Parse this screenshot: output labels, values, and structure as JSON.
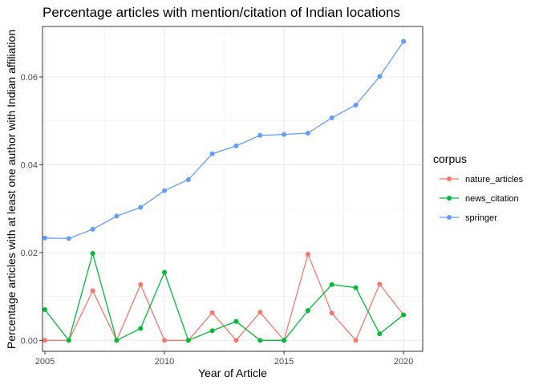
{
  "chart_data": {
    "type": "line",
    "title": "Percentage articles with mention/citation of Indian locations",
    "xlabel": "Year of Article",
    "ylabel": "Percentage articles with at least one author with Indian affiliation",
    "xlim": [
      2004.9,
      2020.8
    ],
    "ylim": [
      -0.0025,
      0.0715
    ],
    "x_ticks": [
      2005,
      2010,
      2015,
      2020
    ],
    "x_tick_labels": [
      "2005",
      "2010",
      "2015",
      "2020"
    ],
    "y_ticks": [
      0.0,
      0.02,
      0.04,
      0.06
    ],
    "y_tick_labels": [
      "0.00",
      "0.02",
      "0.04",
      "0.06"
    ],
    "grid": true,
    "legend": {
      "title": "corpus",
      "position": "right"
    },
    "x": [
      2005,
      2006,
      2007,
      2008,
      2009,
      2010,
      2011,
      2012,
      2013,
      2014,
      2015,
      2016,
      2017,
      2018,
      2019,
      2020
    ],
    "series": [
      {
        "name": "nature_articles",
        "color": "#F8766D",
        "values": [
          0.0,
          0.0,
          0.0113,
          0.0,
          0.0127,
          0.0,
          0.0,
          0.0063,
          0.0,
          0.0064,
          0.0,
          0.0196,
          0.0062,
          0.0,
          0.0128,
          0.0058
        ]
      },
      {
        "name": "news_citation",
        "color": "#00BA38",
        "values": [
          0.007,
          0.0,
          0.0198,
          0.0,
          0.0027,
          0.0155,
          0.0,
          0.0022,
          0.0043,
          0.0,
          0.0,
          0.0068,
          0.0127,
          0.012,
          0.0015,
          0.0058
        ]
      },
      {
        "name": "springer",
        "color": "#619CFF",
        "values": [
          0.0233,
          0.0232,
          0.0253,
          0.0283,
          0.0303,
          0.0341,
          0.0366,
          0.0425,
          0.0443,
          0.0467,
          0.0469,
          0.0472,
          0.0507,
          0.0536,
          0.0601,
          0.0681
        ]
      }
    ]
  }
}
